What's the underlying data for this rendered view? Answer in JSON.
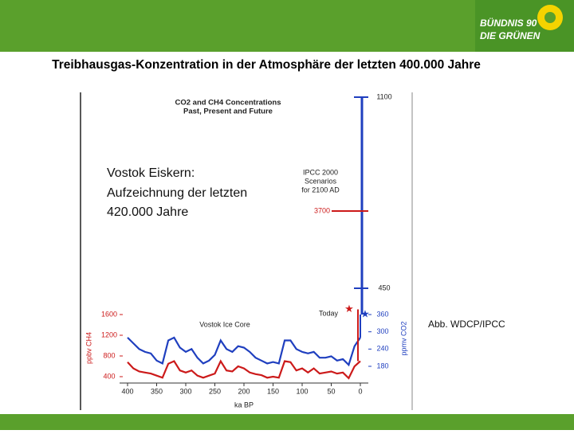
{
  "slide": {
    "title": "Treibhausgas-Konzentration in der Atmosphäre der letzten 400.000 Jahre",
    "logo": [
      "BÜNDNIS 90",
      "DIE GRÜNEN"
    ],
    "overlay": [
      "Vostok Eiskern:",
      "Aufzeichnung der letzten",
      "420.000 Jahre"
    ],
    "credit": "Abb. WDCP/IPCC"
  },
  "chart_data": {
    "type": "line",
    "title": "CO2 and CH4 Concentrations",
    "subtitle": "Past, Present and Future",
    "annotation": "Vostok Ice Core",
    "scenario_label": [
      "IPCC 2000",
      "Scenarios",
      "for 2100 AD"
    ],
    "xlabel": "ka BP",
    "ylabel": "ppbv CH4",
    "y2label": "ppmv CO2",
    "xlim": [
      400,
      0
    ],
    "xticks": [
      400,
      350,
      300,
      250,
      200,
      150,
      100,
      50,
      0
    ],
    "ylim": [
      400,
      1600
    ],
    "yticks": [
      400,
      800,
      1200,
      1600
    ],
    "y2lim": [
      180,
      360
    ],
    "y2ticks": [
      180,
      240,
      300,
      360
    ],
    "x": [
      400,
      390,
      380,
      370,
      360,
      350,
      340,
      330,
      320,
      310,
      300,
      290,
      280,
      270,
      260,
      250,
      240,
      230,
      220,
      210,
      200,
      190,
      180,
      170,
      160,
      150,
      140,
      130,
      120,
      110,
      100,
      90,
      80,
      70,
      60,
      50,
      40,
      30,
      20,
      10,
      0
    ],
    "series": [
      {
        "name": "CO2",
        "color": "#1f3fbf",
        "axis": "y2",
        "values": [
          280,
          260,
          240,
          230,
          225,
          200,
          190,
          270,
          280,
          245,
          230,
          240,
          210,
          190,
          200,
          220,
          270,
          240,
          230,
          250,
          245,
          230,
          210,
          200,
          190,
          195,
          190,
          270,
          270,
          240,
          230,
          225,
          230,
          210,
          210,
          215,
          200,
          205,
          185,
          250,
          280
        ]
      },
      {
        "name": "CH4",
        "color": "#cc1a1a",
        "axis": "y",
        "values": [
          680,
          560,
          500,
          480,
          460,
          420,
          380,
          650,
          700,
          520,
          480,
          520,
          420,
          380,
          420,
          460,
          700,
          520,
          500,
          600,
          560,
          480,
          450,
          430,
          380,
          400,
          380,
          700,
          680,
          520,
          560,
          480,
          560,
          460,
          480,
          500,
          460,
          480,
          370,
          600,
          700
        ]
      }
    ],
    "today": {
      "label": "Today",
      "co2": 360,
      "ch4": 1700
    },
    "scenario_ticks": [
      {
        "value": 450,
        "color": "#1f3fbf"
      },
      {
        "value": 3700,
        "color": "#cc1a1a"
      },
      {
        "value": 1100,
        "color": "#1f3fbf"
      }
    ]
  }
}
